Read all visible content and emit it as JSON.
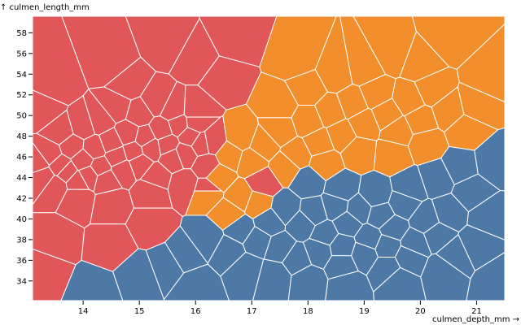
{
  "chart_data": {
    "type": "voronoi",
    "xlabel": "culmen_depth_mm →",
    "ylabel": "↑ culmen_length_mm",
    "xlim": [
      13.1,
      21.5
    ],
    "ylim": [
      32.1,
      59.6
    ],
    "xticks": [
      14,
      15,
      16,
      17,
      18,
      19,
      20,
      21
    ],
    "yticks": [
      34,
      36,
      38,
      40,
      42,
      44,
      46,
      48,
      50,
      52,
      54,
      56,
      58
    ],
    "colors": {
      "red": "#e15759",
      "orange": "#f28e2b",
      "blue": "#4e79a7"
    },
    "points": [
      [
        13.2,
        45.5,
        "red"
      ],
      [
        13.3,
        44.0,
        "red"
      ],
      [
        13.4,
        46.3,
        "red"
      ],
      [
        13.5,
        43.2,
        "red"
      ],
      [
        13.6,
        45.1,
        "red"
      ],
      [
        13.7,
        44.6,
        "red"
      ],
      [
        13.8,
        47.0,
        "red"
      ],
      [
        13.9,
        43.6,
        "red"
      ],
      [
        14.0,
        45.7,
        "red"
      ],
      [
        14.1,
        44.2,
        "red"
      ],
      [
        14.2,
        46.8,
        "red"
      ],
      [
        14.3,
        45.0,
        "red"
      ],
      [
        14.4,
        43.8,
        "red"
      ],
      [
        14.5,
        47.4,
        "red"
      ],
      [
        14.6,
        46.0,
        "red"
      ],
      [
        14.7,
        44.8,
        "red"
      ],
      [
        14.8,
        48.2,
        "red"
      ],
      [
        14.9,
        46.5,
        "red"
      ],
      [
        15.0,
        45.4,
        "red"
      ],
      [
        15.1,
        47.8,
        "red"
      ],
      [
        15.2,
        46.9,
        "red"
      ],
      [
        15.3,
        44.1,
        "red"
      ],
      [
        15.4,
        48.6,
        "red"
      ],
      [
        15.5,
        47.2,
        "red"
      ],
      [
        15.6,
        45.9,
        "red"
      ],
      [
        15.7,
        49.1,
        "red"
      ],
      [
        15.8,
        46.3,
        "red"
      ],
      [
        15.9,
        48.0,
        "red"
      ],
      [
        16.0,
        50.4,
        "red"
      ],
      [
        16.1,
        47.3,
        "red"
      ],
      [
        16.2,
        45.1,
        "red"
      ],
      [
        14.3,
        49.5,
        "red"
      ],
      [
        14.6,
        50.8,
        "red"
      ],
      [
        15.0,
        50.2,
        "red"
      ],
      [
        15.3,
        51.3,
        "red"
      ],
      [
        15.6,
        50.5,
        "red"
      ],
      [
        16.0,
        49.3,
        "red"
      ],
      [
        14.0,
        49.0,
        "red"
      ],
      [
        13.6,
        48.4,
        "red"
      ],
      [
        13.9,
        42.1,
        "red"
      ],
      [
        14.5,
        41.5,
        "red"
      ],
      [
        15.2,
        42.6,
        "red"
      ],
      [
        15.8,
        43.4,
        "red"
      ],
      [
        16.2,
        42.8,
        "red"
      ],
      [
        13.5,
        53.0,
        "red"
      ],
      [
        14.5,
        55.0,
        "red"
      ],
      [
        15.5,
        57.0,
        "red"
      ],
      [
        16.5,
        53.5,
        "red"
      ],
      [
        13.5,
        38.0,
        "red"
      ],
      [
        14.5,
        37.5,
        "red"
      ],
      [
        13.3,
        35.0,
        "red"
      ],
      [
        15.2,
        39.5,
        "red"
      ],
      [
        16.7,
        57.5,
        "red"
      ],
      [
        14.8,
        53.0,
        "red"
      ],
      [
        16.0,
        55.5,
        "red"
      ],
      [
        13.3,
        50.5,
        "red"
      ],
      [
        16.3,
        47.5,
        "red"
      ],
      [
        17.2,
        43.5,
        "red"
      ],
      [
        17.2,
        47.1,
        "orange"
      ],
      [
        17.5,
        48.6,
        "orange"
      ],
      [
        17.8,
        46.2,
        "orange"
      ],
      [
        18.0,
        49.5,
        "orange"
      ],
      [
        18.2,
        47.3,
        "orange"
      ],
      [
        18.4,
        50.4,
        "orange"
      ],
      [
        18.6,
        48.1,
        "orange"
      ],
      [
        18.8,
        51.2,
        "orange"
      ],
      [
        19.0,
        49.2,
        "orange"
      ],
      [
        19.2,
        52.1,
        "orange"
      ],
      [
        19.4,
        50.1,
        "orange"
      ],
      [
        19.6,
        48.5,
        "orange"
      ],
      [
        19.8,
        51.5,
        "orange"
      ],
      [
        20.0,
        49.5,
        "orange"
      ],
      [
        20.2,
        52.5,
        "orange"
      ],
      [
        20.5,
        50.4,
        "orange"
      ],
      [
        17.0,
        45.6,
        "orange"
      ],
      [
        16.8,
        47.9,
        "orange"
      ],
      [
        16.6,
        46.2,
        "orange"
      ],
      [
        16.4,
        44.1,
        "orange"
      ],
      [
        16.2,
        42.6,
        "orange"
      ],
      [
        16.8,
        42.1,
        "orange"
      ],
      [
        17.1,
        41.5,
        "orange"
      ],
      [
        17.6,
        45.0,
        "orange"
      ],
      [
        18.3,
        45.4,
        "orange"
      ],
      [
        18.9,
        46.5,
        "orange"
      ],
      [
        19.5,
        46.2,
        "orange"
      ],
      [
        20.1,
        47.3,
        "orange"
      ],
      [
        20.8,
        48.6,
        "orange"
      ],
      [
        18.5,
        54.0,
        "orange"
      ],
      [
        19.5,
        56.0,
        "orange"
      ],
      [
        20.5,
        57.5,
        "orange"
      ],
      [
        21.2,
        53.5,
        "orange"
      ],
      [
        17.8,
        55.5,
        "orange"
      ],
      [
        18.0,
        52.5,
        "orange"
      ],
      [
        19.0,
        54.5,
        "orange"
      ],
      [
        20.0,
        55.0,
        "orange"
      ],
      [
        21.0,
        51.0,
        "orange"
      ],
      [
        17.5,
        51.0,
        "orange"
      ],
      [
        16.6,
        40.5,
        "orange"
      ],
      [
        17.6,
        41.0,
        "blue"
      ],
      [
        17.9,
        39.5,
        "blue"
      ],
      [
        18.1,
        40.6,
        "blue"
      ],
      [
        18.3,
        38.5,
        "blue"
      ],
      [
        18.5,
        41.2,
        "blue"
      ],
      [
        18.7,
        39.6,
        "blue"
      ],
      [
        18.9,
        40.9,
        "blue"
      ],
      [
        19.1,
        38.1,
        "blue"
      ],
      [
        19.3,
        40.3,
        "blue"
      ],
      [
        19.5,
        39.1,
        "blue"
      ],
      [
        19.7,
        41.5,
        "blue"
      ],
      [
        19.9,
        37.6,
        "blue"
      ],
      [
        20.1,
        39.9,
        "blue"
      ],
      [
        20.3,
        38.4,
        "blue"
      ],
      [
        20.5,
        40.6,
        "blue"
      ],
      [
        17.5,
        37.2,
        "blue"
      ],
      [
        17.8,
        36.1,
        "blue"
      ],
      [
        18.2,
        36.9,
        "blue"
      ],
      [
        18.6,
        35.6,
        "blue"
      ],
      [
        19.0,
        36.6,
        "blue"
      ],
      [
        19.4,
        35.2,
        "blue"
      ],
      [
        19.8,
        36.3,
        "blue"
      ],
      [
        16.8,
        39.0,
        "blue"
      ],
      [
        17.1,
        37.9,
        "blue"
      ],
      [
        16.6,
        36.9,
        "blue"
      ],
      [
        16.2,
        38.1,
        "blue"
      ],
      [
        15.8,
        36.5,
        "blue"
      ],
      [
        16.9,
        35.2,
        "blue"
      ],
      [
        17.4,
        34.5,
        "blue"
      ],
      [
        18.0,
        34.1,
        "blue"
      ],
      [
        18.7,
        33.6,
        "blue"
      ],
      [
        19.6,
        34.0,
        "blue"
      ],
      [
        20.4,
        35.0,
        "blue"
      ],
      [
        21.0,
        37.5,
        "blue"
      ],
      [
        21.2,
        40.2,
        "blue"
      ],
      [
        20.9,
        42.6,
        "blue"
      ],
      [
        20.3,
        43.9,
        "blue"
      ],
      [
        19.8,
        43.0,
        "blue"
      ],
      [
        19.2,
        42.4,
        "blue"
      ],
      [
        18.6,
        42.9,
        "blue"
      ],
      [
        18.0,
        43.6,
        "blue"
      ],
      [
        21.3,
        45.5,
        "blue"
      ],
      [
        20.7,
        45.0,
        "blue"
      ],
      [
        15.0,
        34.5,
        "blue"
      ],
      [
        14.2,
        33.0,
        "blue"
      ],
      [
        16.0,
        33.5,
        "blue"
      ],
      [
        15.5,
        35.5,
        "blue"
      ],
      [
        17.3,
        39.7,
        "blue"
      ],
      [
        18.6,
        37.3,
        "blue"
      ],
      [
        19.4,
        37.4,
        "blue"
      ],
      [
        20.6,
        36.5,
        "blue"
      ],
      [
        21.4,
        34.0,
        "blue"
      ]
    ]
  }
}
